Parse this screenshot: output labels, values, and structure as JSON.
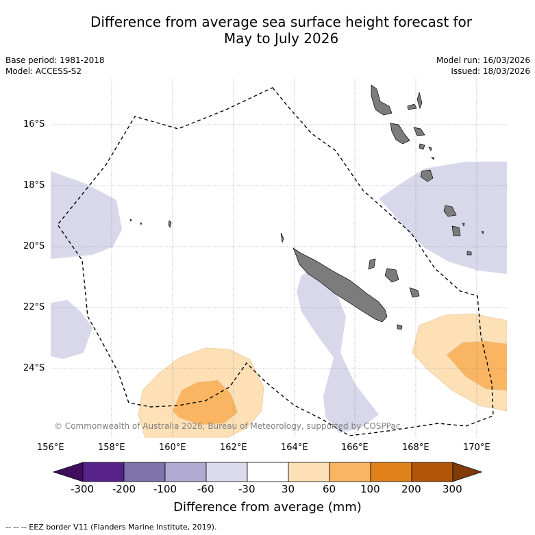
{
  "title": {
    "line1": "Difference from average sea surface height forecast for",
    "line2": "May to July 2026"
  },
  "meta_left": {
    "base_period": "Base period: 1981-2018",
    "model": "Model: ACCESS-S2"
  },
  "meta_right": {
    "model_run": "Model run: 16/03/2026",
    "issued": "Issued: 18/03/2026"
  },
  "map": {
    "lat_labels": [
      "16°S",
      "18°S",
      "20°S",
      "22°S",
      "24°S"
    ],
    "lon_labels": [
      "156°E",
      "158°E",
      "160°E",
      "162°E",
      "164°E",
      "166°E",
      "168°E",
      "170°E"
    ],
    "copyright": "© Commonwealth of Australia 2026, Bureau of Meteorology, supported by COSPPac",
    "icons": {
      "land": "landmass-icon",
      "eez": "eez-border-icon"
    }
  },
  "colorbar": {
    "title": "Difference from average (mm)",
    "tick_labels": [
      "-300",
      "-200",
      "-100",
      "-60",
      "-30",
      "30",
      "60",
      "100",
      "200",
      "300"
    ],
    "bins": [
      {
        "color": "#3f0f5e"
      },
      {
        "color": "#56228a"
      },
      {
        "color": "#8072ac"
      },
      {
        "color": "#b1abd2"
      },
      {
        "color": "#dadaec"
      },
      {
        "color": "#ffffff"
      },
      {
        "color": "#fde0b6"
      },
      {
        "color": "#f9b561"
      },
      {
        "color": "#e0811c"
      },
      {
        "color": "#b05408"
      },
      {
        "color": "#7f3b08"
      }
    ]
  },
  "legend": {
    "eez_line": "-- -- -- EEZ border V11 (Flanders Marine Institute, 2019)."
  }
}
